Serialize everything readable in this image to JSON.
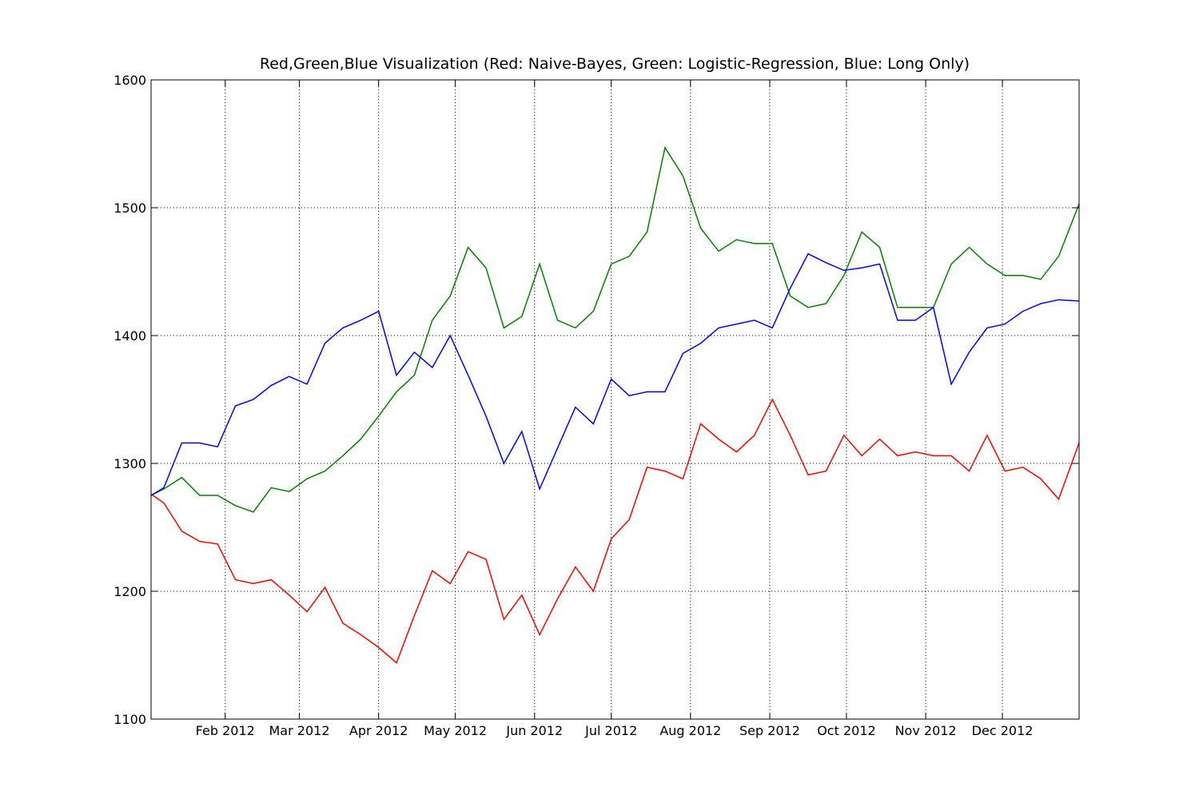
{
  "chart_data": {
    "type": "line",
    "title": "Red,Green,Blue Visualization (Red: Naive-Bayes, Green: Logistic-Regression, Blue: Long Only)",
    "x": [
      2,
      7,
      14,
      21,
      28,
      35,
      42,
      49,
      56,
      63,
      70,
      77,
      84,
      91,
      98,
      105,
      112,
      119,
      126,
      133,
      140,
      147,
      154,
      161,
      168,
      175,
      182,
      189,
      196,
      203,
      210,
      217,
      224,
      231,
      238,
      245,
      252,
      259,
      266,
      273,
      280,
      287,
      294,
      301,
      308,
      315,
      322,
      329,
      336,
      343,
      350,
      357,
      365
    ],
    "series": [
      {
        "color": "#ff0000",
        "values": [
          1276,
          1269,
          1247,
          1239,
          1237,
          1209,
          1206,
          1209,
          1197,
          1184,
          1203,
          1175,
          1166,
          1156,
          1144,
          1181,
          1216,
          1206,
          1231,
          1225,
          1178,
          1197,
          1166,
          1194,
          1219,
          1200,
          1241,
          1256,
          1297,
          1294,
          1288,
          1331,
          1319,
          1309,
          1322,
          1350,
          1322,
          1291,
          1294,
          1322,
          1306,
          1319,
          1306,
          1309,
          1306,
          1306,
          1294,
          1322,
          1294,
          1297,
          1288,
          1272,
          1316
        ]
      },
      {
        "color": "#008000",
        "values": [
          1275,
          1280,
          1289,
          1275,
          1275,
          1267,
          1262,
          1281,
          1278,
          1288,
          1294,
          1306,
          1319,
          1337,
          1356,
          1369,
          1412,
          1431,
          1469,
          1453,
          1406,
          1415,
          1456,
          1412,
          1406,
          1419,
          1456,
          1462,
          1481,
          1547,
          1525,
          1484,
          1466,
          1475,
          1472,
          1472,
          1431,
          1422,
          1425,
          1447,
          1481,
          1469,
          1422,
          1422,
          1422,
          1456,
          1469,
          1456,
          1447,
          1447,
          1444,
          1462,
          1503
        ]
      },
      {
        "color": "#0000ff",
        "values": [
          1275,
          1281,
          1316,
          1316,
          1313,
          1345,
          1350,
          1361,
          1368,
          1362,
          1394,
          1406,
          1412,
          1419,
          1369,
          1387,
          1375,
          1400,
          1369,
          1337,
          1300,
          1325,
          1280,
          1312,
          1344,
          1331,
          1366,
          1353,
          1356,
          1356,
          1386,
          1394,
          1406,
          1409,
          1412,
          1406,
          1437,
          1464,
          1457,
          1451,
          1453,
          1456,
          1412,
          1412,
          1422,
          1362,
          1387,
          1406,
          1409,
          1419,
          1425,
          1428,
          1427
        ]
      }
    ],
    "xlim": [
      2,
      365
    ],
    "xticks": [
      {
        "value": 31,
        "label": "Feb 2012"
      },
      {
        "value": 60,
        "label": "Mar 2012"
      },
      {
        "value": 91,
        "label": "Apr 2012"
      },
      {
        "value": 121,
        "label": "May 2012"
      },
      {
        "value": 152,
        "label": "Jun 2012"
      },
      {
        "value": 182,
        "label": "Jul 2012"
      },
      {
        "value": 213,
        "label": "Aug 2012"
      },
      {
        "value": 244,
        "label": "Sep 2012"
      },
      {
        "value": 274,
        "label": "Oct 2012"
      },
      {
        "value": 305,
        "label": "Nov 2012"
      },
      {
        "value": 335,
        "label": "Dec 2012"
      }
    ],
    "ylim": [
      1100,
      1600
    ],
    "yticks": [
      1100,
      1200,
      1300,
      1400,
      1500,
      1600
    ],
    "grid": true
  }
}
